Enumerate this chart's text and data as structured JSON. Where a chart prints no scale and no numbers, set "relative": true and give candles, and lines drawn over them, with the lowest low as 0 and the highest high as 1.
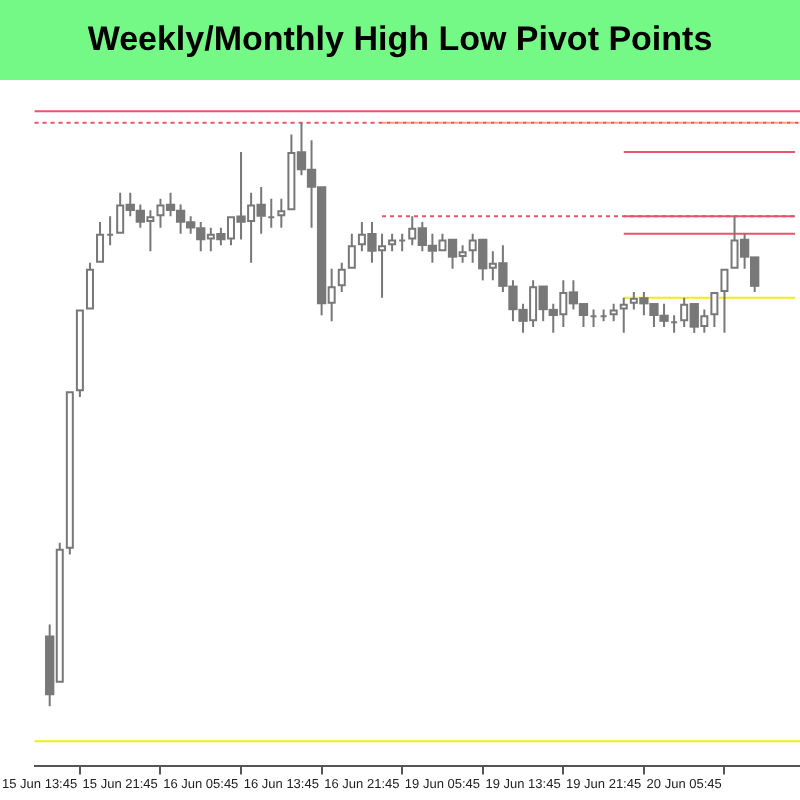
{
  "chart_data": {
    "type": "candlestick",
    "title": "Weekly/Monthly High Low Pivot Points",
    "relative": true,
    "grid": false,
    "legend": false,
    "color": "#787878",
    "colors": [
      null,
      "#787878",
      "#ffffff",
      "#ffffff",
      "#ffffff",
      "#ffffff",
      "#ffffff",
      "#ffffff",
      "#ffffff",
      "#787878",
      "#787878",
      "#ffffff",
      "#ffffff",
      "#787878",
      "#787878",
      "#787878",
      "#787878",
      "#ffffff",
      "#787878",
      "#ffffff",
      "#787878",
      "#ffffff",
      "#787878",
      "#ffffff",
      "#ffffff",
      "#ffffff",
      "#787878",
      "#787878",
      "#787878",
      "#ffffff",
      "#ffffff",
      "#ffffff",
      "#ffffff",
      "#787878",
      "#ffffff",
      "#ffffff",
      "#ffffff",
      "#ffffff",
      "#787878",
      "#787878",
      "#ffffff",
      "#787878",
      "#ffffff",
      "#ffffff",
      "#787878",
      "#ffffff",
      "#787878",
      "#787878",
      "#787878",
      "#ffffff",
      "#787878",
      "#787878",
      "#ffffff",
      "#787878",
      "#787878",
      "#ffffff",
      "#ffffff",
      "#ffffff",
      "#ffffff",
      "#ffffff",
      "#787878",
      "#787878",
      "#787878",
      "#ffffff",
      "#ffffff",
      "#787878",
      "#ffffff",
      "#ffffff",
      "#ffffff",
      "#ffffff",
      "#787878",
      "#787878",
      null,
      null,
      null,
      null
    ],
    "categories": [
      "15 Jun 13:45",
      null,
      null,
      null,
      null,
      null,
      null,
      null,
      "15 Jun 21:45",
      null,
      null,
      null,
      null,
      null,
      null,
      null,
      "16 Jun 05:45",
      null,
      null,
      null,
      null,
      null,
      null,
      null,
      "16 Jun 13:45",
      null,
      null,
      null,
      null,
      null,
      null,
      null,
      "16 Jun 21:45",
      null,
      null,
      null,
      null,
      null,
      null,
      null,
      "19 Jun 05:45",
      null,
      null,
      null,
      null,
      null,
      null,
      null,
      "19 Jun 13:45",
      null,
      null,
      null,
      null,
      null,
      null,
      null,
      "19 Jun 21:45",
      null,
      null,
      null,
      null,
      null,
      null,
      null,
      "20 Jun 05:45",
      null,
      null,
      null,
      null,
      null,
      null,
      null,
      null,
      null,
      null,
      null
    ],
    "ohlc": [
      null,
      [
        0.12,
        0.14,
        0,
        0.02
      ],
      [
        0.04,
        0.28,
        0.04,
        0.27
      ],
      [
        0.27,
        0.54,
        0.26,
        0.54
      ],
      [
        0.54,
        0.68,
        0.53,
        0.68
      ],
      [
        0.68,
        0.76,
        0.68,
        0.75
      ],
      [
        0.76,
        0.83,
        0.76,
        0.81
      ],
      [
        0.81,
        0.84,
        0.79,
        0.81
      ],
      [
        0.81,
        0.88,
        0.81,
        0.86
      ],
      [
        0.86,
        0.88,
        0.84,
        0.85
      ],
      [
        0.85,
        0.86,
        0.82,
        0.83
      ],
      [
        0.83,
        0.85,
        0.78,
        0.84
      ],
      [
        0.84,
        0.87,
        0.82,
        0.86
      ],
      [
        0.86,
        0.88,
        0.84,
        0.85
      ],
      [
        0.85,
        0.86,
        0.81,
        0.83
      ],
      [
        0.83,
        0.84,
        0.81,
        0.82
      ],
      [
        0.82,
        0.83,
        0.78,
        0.8
      ],
      [
        0.8,
        0.82,
        0.78,
        0.81
      ],
      [
        0.81,
        0.82,
        0.79,
        0.8
      ],
      [
        0.8,
        0.84,
        0.79,
        0.84
      ],
      [
        0.84,
        0.95,
        0.8,
        0.83
      ],
      [
        0.83,
        0.88,
        0.76,
        0.86
      ],
      [
        0.86,
        0.89,
        0.81,
        0.84
      ],
      [
        0.84,
        0.87,
        0.82,
        0.84
      ],
      [
        0.84,
        0.87,
        0.82,
        0.85
      ],
      [
        0.85,
        0.98,
        0.85,
        0.95
      ],
      [
        0.95,
        1,
        0.91,
        0.92
      ],
      [
        0.92,
        0.97,
        0.82,
        0.89
      ],
      [
        0.89,
        0.89,
        0.67,
        0.69
      ],
      [
        0.69,
        0.75,
        0.66,
        0.72
      ],
      [
        0.72,
        0.76,
        0.71,
        0.75
      ],
      [
        0.75,
        0.81,
        0.75,
        0.79
      ],
      [
        0.79,
        0.83,
        0.78,
        0.81
      ],
      [
        0.81,
        0.83,
        0.76,
        0.78
      ],
      [
        0.78,
        0.81,
        0.7,
        0.79
      ],
      [
        0.79,
        0.81,
        0.78,
        0.8
      ],
      [
        0.8,
        0.81,
        0.78,
        0.8
      ],
      [
        0.8,
        0.84,
        0.79,
        0.82
      ],
      [
        0.82,
        0.83,
        0.78,
        0.79
      ],
      [
        0.79,
        0.81,
        0.76,
        0.78
      ],
      [
        0.78,
        0.81,
        0.78,
        0.8
      ],
      [
        0.8,
        0.8,
        0.75,
        0.77
      ],
      [
        0.77,
        0.79,
        0.76,
        0.78
      ],
      [
        0.78,
        0.81,
        0.76,
        0.8
      ],
      [
        0.8,
        0.8,
        0.73,
        0.75
      ],
      [
        0.75,
        0.78,
        0.73,
        0.76
      ],
      [
        0.76,
        0.79,
        0.71,
        0.72
      ],
      [
        0.72,
        0.73,
        0.66,
        0.68
      ],
      [
        0.68,
        0.69,
        0.64,
        0.66
      ],
      [
        0.66,
        0.73,
        0.65,
        0.72
      ],
      [
        0.72,
        0.72,
        0.66,
        0.68
      ],
      [
        0.68,
        0.69,
        0.64,
        0.67
      ],
      [
        0.67,
        0.73,
        0.65,
        0.71
      ],
      [
        0.71,
        0.73,
        0.68,
        0.69
      ],
      [
        0.69,
        0.69,
        0.65,
        0.67
      ],
      [
        0.67,
        0.68,
        0.65,
        0.67
      ],
      [
        0.67,
        0.68,
        0.66,
        0.67
      ],
      [
        0.67,
        0.69,
        0.66,
        0.68
      ],
      [
        0.68,
        0.7,
        0.64,
        0.69
      ],
      [
        0.69,
        0.71,
        0.68,
        0.7
      ],
      [
        0.7,
        0.71,
        0.67,
        0.69
      ],
      [
        0.69,
        0.69,
        0.65,
        0.67
      ],
      [
        0.67,
        0.69,
        0.65,
        0.66
      ],
      [
        0.66,
        0.67,
        0.64,
        0.66
      ],
      [
        0.66,
        0.7,
        0.65,
        0.69
      ],
      [
        0.69,
        0.69,
        0.64,
        0.65
      ],
      [
        0.65,
        0.68,
        0.64,
        0.67
      ],
      [
        0.67,
        0.71,
        0.65,
        0.71
      ],
      [
        0.71,
        0.75,
        0.64,
        0.75
      ],
      [
        0.75,
        0.84,
        0.75,
        0.8
      ],
      [
        0.8,
        0.81,
        0.75,
        0.77
      ],
      [
        0.77,
        0.77,
        0.71,
        0.72
      ],
      null,
      null,
      null,
      null
    ],
    "series": [
      {
        "type": "line",
        "color": "#f4a460",
        "line_style": "dotted",
        "values": [
          null,
          null,
          null,
          null,
          null,
          null,
          null,
          null,
          null,
          null,
          null,
          null,
          null,
          null,
          null,
          null,
          null,
          null,
          null,
          null,
          null,
          null,
          null,
          null,
          null,
          null,
          null,
          null,
          null,
          null,
          null,
          null,
          null,
          null,
          1,
          1,
          1,
          1,
          1,
          1,
          1,
          1,
          1,
          1,
          1,
          1,
          1,
          1,
          1,
          1,
          1,
          1,
          1,
          1,
          1,
          1,
          1,
          1,
          1,
          1,
          1,
          1,
          1,
          1,
          1,
          1,
          1,
          1,
          1,
          1,
          1,
          1,
          1,
          1,
          1,
          1
        ]
      },
      {
        "type": "line",
        "color": "#e8546c",
        "line_style": "dotted",
        "values": [
          null,
          null,
          null,
          null,
          null,
          null,
          null,
          null,
          null,
          null,
          null,
          null,
          null,
          null,
          null,
          null,
          null,
          null,
          null,
          null,
          null,
          null,
          null,
          null,
          null,
          null,
          null,
          null,
          null,
          null,
          null,
          null,
          null,
          null,
          0.84,
          0.84,
          0.84,
          0.84,
          0.84,
          0.84,
          0.84,
          0.84,
          0.84,
          0.84,
          0.84,
          0.84,
          0.84,
          0.84,
          0.84,
          0.84,
          0.84,
          0.84,
          0.84,
          0.84,
          0.84,
          0.84,
          0.84,
          0.84,
          0.84,
          0.84,
          0.84,
          0.84,
          0.84,
          0.84,
          0.84,
          0.84,
          0.84,
          0.84,
          0.84,
          0.84,
          0.84,
          0.84,
          0.84,
          0.84,
          0.84,
          0.84
        ]
      },
      {
        "type": "line",
        "color": "#e8546c",
        "line_style": "solid",
        "values": [
          null,
          null,
          null,
          null,
          null,
          null,
          null,
          null,
          null,
          null,
          null,
          null,
          null,
          null,
          null,
          null,
          null,
          null,
          null,
          null,
          null,
          null,
          null,
          null,
          null,
          null,
          null,
          null,
          null,
          null,
          null,
          null,
          null,
          null,
          null,
          null,
          null,
          null,
          null,
          null,
          null,
          null,
          null,
          null,
          null,
          null,
          null,
          null,
          null,
          null,
          null,
          null,
          null,
          null,
          null,
          null,
          null,
          null,
          0.95,
          0.95,
          0.95,
          0.95,
          0.95,
          0.95,
          0.95,
          0.95,
          0.95,
          0.95,
          0.95,
          0.95,
          0.95,
          0.95,
          0.95,
          0.95,
          0.95,
          0.95
        ]
      },
      {
        "type": "line",
        "color": "#e8546c",
        "line_style": "solid",
        "values": [
          null,
          null,
          null,
          null,
          null,
          null,
          null,
          null,
          null,
          null,
          null,
          null,
          null,
          null,
          null,
          null,
          null,
          null,
          null,
          null,
          null,
          null,
          null,
          null,
          null,
          null,
          null,
          null,
          null,
          null,
          null,
          null,
          null,
          null,
          null,
          null,
          null,
          null,
          null,
          null,
          null,
          null,
          null,
          null,
          null,
          null,
          null,
          null,
          null,
          null,
          null,
          null,
          null,
          null,
          null,
          null,
          null,
          null,
          0.84,
          0.84,
          0.84,
          0.84,
          0.84,
          0.84,
          0.84,
          0.84,
          0.84,
          0.84,
          0.84,
          0.84,
          0.84,
          0.84,
          0.84,
          0.84,
          0.84,
          0.84
        ]
      },
      {
        "type": "line",
        "color": "#e8546c",
        "line_style": "solid",
        "values": [
          null,
          null,
          null,
          null,
          null,
          null,
          null,
          null,
          null,
          null,
          null,
          null,
          null,
          null,
          null,
          null,
          null,
          null,
          null,
          null,
          null,
          null,
          null,
          null,
          null,
          null,
          null,
          null,
          null,
          null,
          null,
          null,
          null,
          null,
          null,
          null,
          null,
          null,
          null,
          null,
          null,
          null,
          null,
          null,
          null,
          null,
          null,
          null,
          null,
          null,
          null,
          null,
          null,
          null,
          null,
          null,
          null,
          null,
          0.81,
          0.81,
          0.81,
          0.81,
          0.81,
          0.81,
          0.81,
          0.81,
          0.81,
          0.81,
          0.81,
          0.81,
          0.81,
          0.81,
          0.81,
          0.81,
          0.81,
          0.81
        ]
      },
      {
        "type": "line",
        "color": "#f0f000",
        "line_style": "solid",
        "values": [
          null,
          null,
          null,
          null,
          null,
          null,
          null,
          null,
          null,
          null,
          null,
          null,
          null,
          null,
          null,
          null,
          null,
          null,
          null,
          null,
          null,
          null,
          null,
          null,
          null,
          null,
          null,
          null,
          null,
          null,
          null,
          null,
          null,
          null,
          null,
          null,
          null,
          null,
          null,
          null,
          null,
          null,
          null,
          null,
          null,
          null,
          null,
          null,
          null,
          null,
          null,
          null,
          null,
          null,
          null,
          null,
          null,
          null,
          0.7,
          0.7,
          0.7,
          0.7,
          0.7,
          0.7,
          0.7,
          0.7,
          0.7,
          0.7,
          0.7,
          0.7,
          0.7,
          0.7,
          0.7,
          0.7,
          0.7,
          0.7
        ]
      }
    ],
    "ref_lines": [
      {
        "axis": "y",
        "value": 1.02,
        "color": "#e8546c",
        "line_style": "solid"
      },
      {
        "axis": "y",
        "value": 1,
        "color": "#e8546c",
        "line_style": "dotted"
      },
      {
        "axis": "y",
        "value": -0.06,
        "color": "#f0f000",
        "line_style": "solid"
      }
    ]
  }
}
